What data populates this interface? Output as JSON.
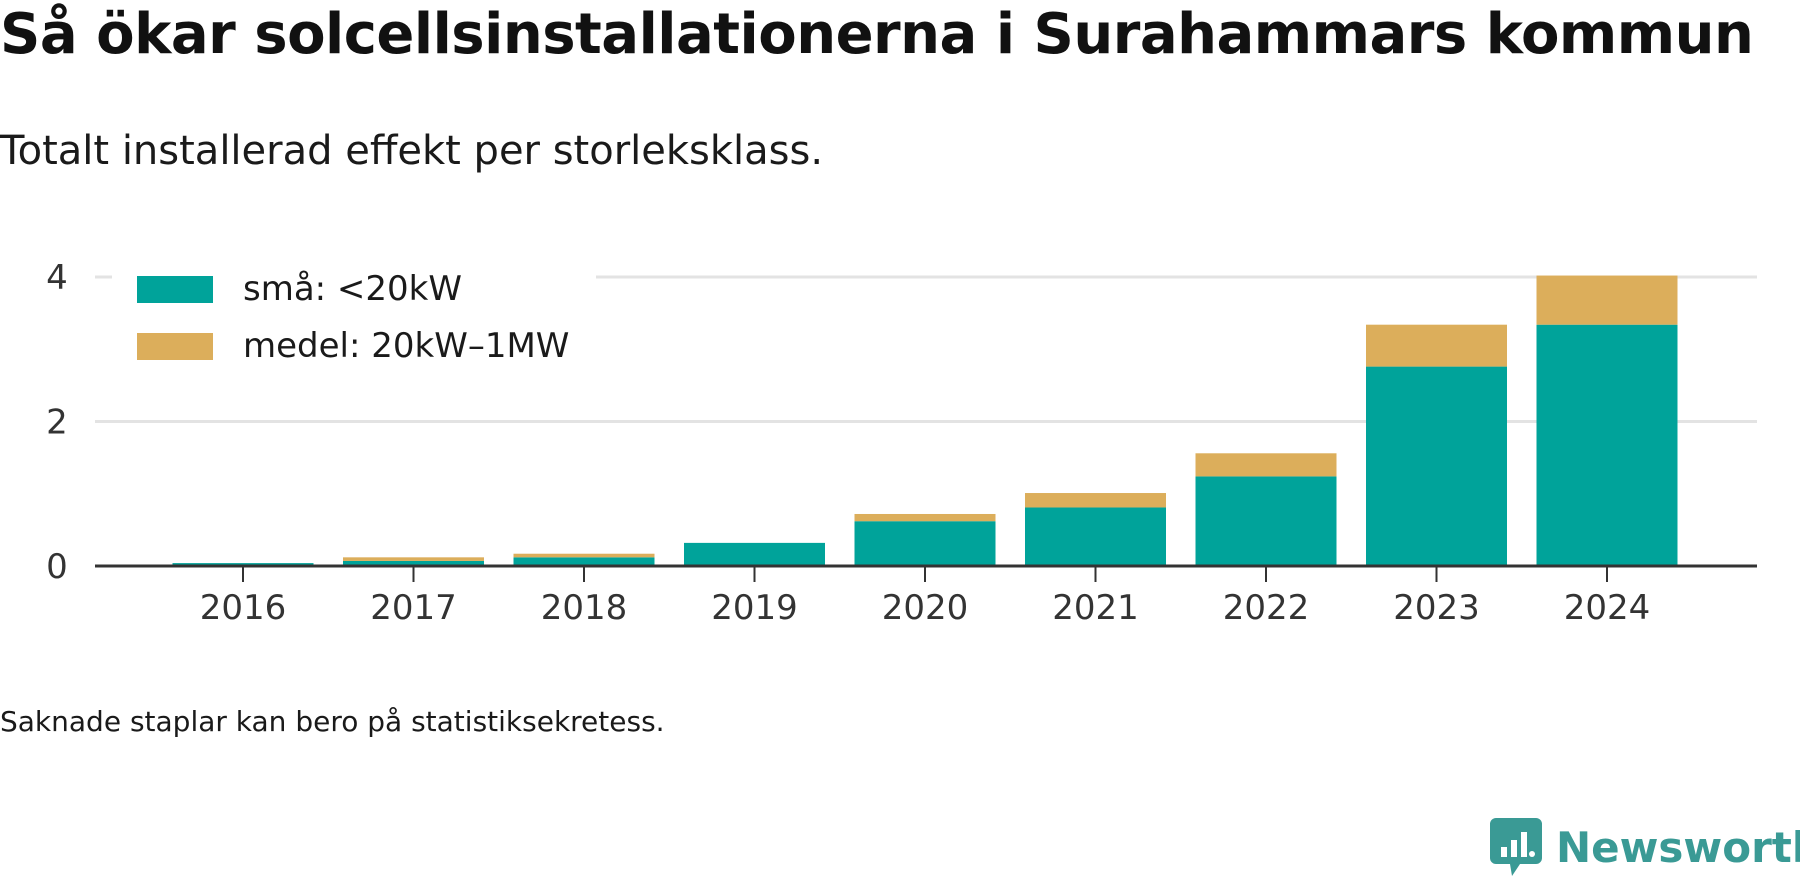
{
  "title": "Så ökar solcellsinstallationerna i Surahammars kommun",
  "subtitle": "Totalt installerad effekt per storleksklass.",
  "note": "Saknade staplar kan bero på statistiksekretess.",
  "brand": {
    "name": "Newsworthy",
    "icon": "newsworthy-logo-icon",
    "color": "#3a9a95"
  },
  "chart_data": {
    "type": "bar",
    "stacked": true,
    "categories": [
      "2016",
      "2017",
      "2018",
      "2019",
      "2020",
      "2021",
      "2022",
      "2023",
      "2024"
    ],
    "series": [
      {
        "name": "små: <20kW",
        "color": "#00a39a",
        "values": [
          0.04,
          0.07,
          0.12,
          0.32,
          0.62,
          0.81,
          1.24,
          2.76,
          3.34
        ]
      },
      {
        "name": "medel: 20kW–1MW",
        "color": "#dcae5b",
        "values": [
          0.0,
          0.05,
          0.05,
          0.0,
          0.1,
          0.2,
          0.32,
          0.58,
          0.68
        ]
      }
    ],
    "yticks": [
      "0",
      "2",
      "4"
    ],
    "ylim": [
      0,
      4.0
    ],
    "xlabel": "",
    "ylabel": "",
    "grid": true,
    "legend_position": "top-left"
  }
}
